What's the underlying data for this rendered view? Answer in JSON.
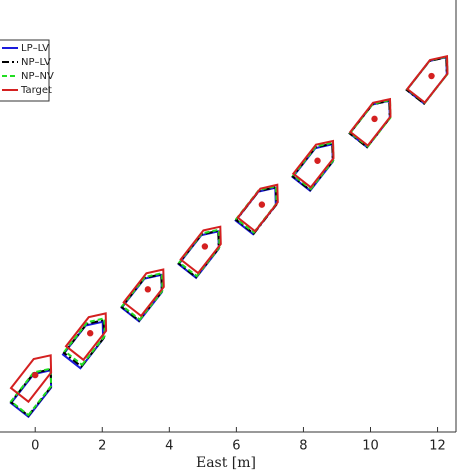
{
  "chart_data": {
    "type": "boats",
    "xlabel": "East [m]",
    "xlim": [
      -1.05,
      12.55
    ],
    "ylim": [
      0,
      12.9
    ],
    "xticks": [
      0,
      2,
      4,
      6,
      8,
      10,
      12
    ],
    "series": [
      {
        "name": "LP–LV",
        "color": "#1a1adc",
        "style": "solid",
        "x": [
          0.0,
          1.55,
          3.3,
          5.0,
          6.7,
          8.4,
          10.1,
          11.8
        ],
        "y": [
          1.25,
          2.7,
          4.1,
          5.4,
          6.7,
          8.0,
          9.3,
          10.6
        ]
      },
      {
        "name": "NP–LV",
        "color": "#000000",
        "style": "dashdot",
        "x": [
          0.0,
          1.58,
          3.3,
          5.0,
          6.72,
          8.4,
          10.1,
          11.8
        ],
        "y": [
          1.28,
          2.75,
          4.12,
          5.42,
          6.72,
          8.02,
          9.3,
          10.6
        ]
      },
      {
        "name": "NP–NV",
        "color": "#22dd22",
        "style": "dashed",
        "x": [
          0.0,
          1.6,
          3.32,
          5.02,
          6.72,
          8.42,
          10.12,
          11.82
        ],
        "y": [
          1.3,
          2.8,
          4.15,
          5.45,
          6.75,
          8.05,
          9.32,
          10.62
        ]
      },
      {
        "name": "Target",
        "color": "#d42020",
        "style": "solid",
        "x": [
          0.0,
          1.64,
          3.36,
          5.06,
          6.76,
          8.42,
          10.12,
          11.82
        ],
        "y": [
          1.7,
          2.95,
          4.26,
          5.54,
          6.79,
          8.1,
          9.35,
          10.63
        ]
      }
    ]
  }
}
